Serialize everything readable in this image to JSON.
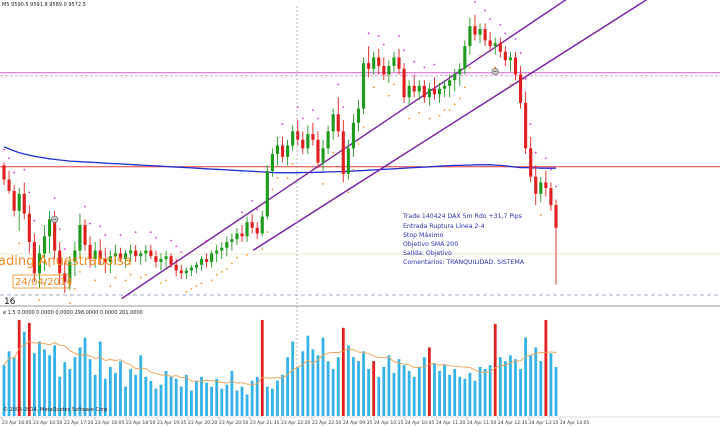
{
  "header": {
    "symbol_text": "M5  9590.5 9591.8 9589.0 9572.5",
    "indicator_text": "e 1.5 0.0000 0.0000 0.0000 298.0000 0.0000 201.0000",
    "copyright_text": "© 2005-2014, MetaQuotes Software Corp.",
    "subwindow_label": "16"
  },
  "watermark": {
    "line1": "ading Anuestrabolsa",
    "line2": "24/04/2014"
  },
  "annotation": {
    "lines": [
      "Trade 140424 DAX 5m Rdo +31,7 Pips",
      "Entrada Ruptura Línea 2-4",
      "Stop Máximo",
      "Objetivo SMA 200",
      "Salida: Objetivo",
      "Comentarios: TRANQUILIDAD. SISTEMA"
    ]
  },
  "colors": {
    "bull_candle": "#1f9a1f",
    "bear_candle": "#e02020",
    "sma_line": "#1e2fd2",
    "trend_line": "#7a1fa0",
    "sar_above": "#d83ad8",
    "sar_below": "#f0962a",
    "red_hline": "#e03838",
    "pink_hline": "#d060d0",
    "volume_bar": "#35b3e6",
    "volume_spike": "#e02020",
    "volume_ma": "#f0a050"
  },
  "chart_data": {
    "type": "candlestick",
    "symbol": "DAX",
    "timeframe": "M5",
    "x_tick_labels": [
      "23 Apr 16:05",
      "23 Apr 16:50",
      "23 Apr 17:20",
      "23 Apr 18:05",
      "23 Apr 18:50",
      "23 Apr 19:35",
      "23 Apr 20:20",
      "23 Apr 20:50",
      "23 Apr 21:35",
      "23 Apr 22:20",
      "23 Apr 22:50",
      "24 Apr 09:35",
      "24 Apr 10:15",
      "24 Apr 10:45",
      "24 Apr 11:20",
      "24 Apr 11:50",
      "24 Apr 12:35",
      "24 Apr 13:15",
      "24 Apr 14:05"
    ],
    "horizontal_levels": [
      {
        "kind": "resistance",
        "value": 0.786
      },
      {
        "kind": "support",
        "value": 0.455
      }
    ],
    "candles": [
      [
        0.46,
        0.47,
        0.39,
        0.41
      ],
      [
        0.41,
        0.44,
        0.36,
        0.37
      ],
      [
        0.37,
        0.39,
        0.28,
        0.3
      ],
      [
        0.3,
        0.38,
        0.23,
        0.36
      ],
      [
        0.36,
        0.4,
        0.27,
        0.29
      ],
      [
        0.29,
        0.32,
        0.15,
        0.19
      ],
      [
        0.19,
        0.22,
        0.05,
        0.08
      ],
      [
        0.08,
        0.18,
        0.03,
        0.15
      ],
      [
        0.15,
        0.25,
        0.09,
        0.21
      ],
      [
        0.21,
        0.3,
        0.15,
        0.27
      ],
      [
        0.27,
        0.3,
        0.13,
        0.16
      ],
      [
        0.16,
        0.19,
        0.04,
        0.08
      ],
      [
        0.08,
        0.12,
        0.01,
        0.05
      ],
      [
        0.05,
        0.14,
        0.02,
        0.12
      ],
      [
        0.12,
        0.19,
        0.07,
        0.16
      ],
      [
        0.16,
        0.29,
        0.13,
        0.25
      ],
      [
        0.25,
        0.27,
        0.16,
        0.18
      ],
      [
        0.18,
        0.21,
        0.1,
        0.13
      ],
      [
        0.13,
        0.19,
        0.1,
        0.16
      ],
      [
        0.16,
        0.2,
        0.11,
        0.13
      ],
      [
        0.13,
        0.17,
        0.08,
        0.12
      ],
      [
        0.12,
        0.16,
        0.08,
        0.14
      ],
      [
        0.14,
        0.18,
        0.11,
        0.15
      ],
      [
        0.15,
        0.17,
        0.12,
        0.13
      ],
      [
        0.13,
        0.16,
        0.1,
        0.15
      ],
      [
        0.15,
        0.18,
        0.12,
        0.16
      ],
      [
        0.16,
        0.18,
        0.12,
        0.14
      ],
      [
        0.14,
        0.16,
        0.11,
        0.15
      ],
      [
        0.15,
        0.18,
        0.12,
        0.16
      ],
      [
        0.16,
        0.18,
        0.13,
        0.14
      ],
      [
        0.14,
        0.16,
        0.1,
        0.12
      ],
      [
        0.12,
        0.15,
        0.09,
        0.13
      ],
      [
        0.13,
        0.16,
        0.1,
        0.14
      ],
      [
        0.14,
        0.15,
        0.1,
        0.11
      ],
      [
        0.11,
        0.13,
        0.07,
        0.09
      ],
      [
        0.09,
        0.11,
        0.06,
        0.08
      ],
      [
        0.08,
        0.1,
        0.06,
        0.09
      ],
      [
        0.09,
        0.11,
        0.07,
        0.1
      ],
      [
        0.1,
        0.12,
        0.08,
        0.11
      ],
      [
        0.11,
        0.14,
        0.09,
        0.13
      ],
      [
        0.13,
        0.15,
        0.1,
        0.12
      ],
      [
        0.12,
        0.16,
        0.1,
        0.15
      ],
      [
        0.15,
        0.18,
        0.12,
        0.16
      ],
      [
        0.16,
        0.19,
        0.13,
        0.17
      ],
      [
        0.17,
        0.21,
        0.14,
        0.19
      ],
      [
        0.19,
        0.22,
        0.16,
        0.2
      ],
      [
        0.2,
        0.24,
        0.18,
        0.22
      ],
      [
        0.22,
        0.25,
        0.19,
        0.21
      ],
      [
        0.21,
        0.28,
        0.19,
        0.26
      ],
      [
        0.26,
        0.29,
        0.22,
        0.24
      ],
      [
        0.24,
        0.26,
        0.2,
        0.22
      ],
      [
        0.22,
        0.3,
        0.21,
        0.28
      ],
      [
        0.28,
        0.46,
        0.27,
        0.44
      ],
      [
        0.44,
        0.52,
        0.42,
        0.5
      ],
      [
        0.5,
        0.56,
        0.46,
        0.53
      ],
      [
        0.53,
        0.56,
        0.47,
        0.49
      ],
      [
        0.49,
        0.55,
        0.46,
        0.53
      ],
      [
        0.53,
        0.6,
        0.51,
        0.58
      ],
      [
        0.58,
        0.62,
        0.53,
        0.55
      ],
      [
        0.55,
        0.58,
        0.5,
        0.52
      ],
      [
        0.52,
        0.6,
        0.5,
        0.57
      ],
      [
        0.57,
        0.61,
        0.53,
        0.55
      ],
      [
        0.55,
        0.58,
        0.45,
        0.47
      ],
      [
        0.47,
        0.55,
        0.44,
        0.52
      ],
      [
        0.52,
        0.6,
        0.5,
        0.58
      ],
      [
        0.58,
        0.66,
        0.55,
        0.64
      ],
      [
        0.64,
        0.7,
        0.56,
        0.58
      ],
      [
        0.58,
        0.62,
        0.4,
        0.43
      ],
      [
        0.43,
        0.55,
        0.41,
        0.52
      ],
      [
        0.52,
        0.64,
        0.49,
        0.61
      ],
      [
        0.61,
        0.69,
        0.58,
        0.66
      ],
      [
        0.66,
        0.84,
        0.64,
        0.82
      ],
      [
        0.82,
        0.88,
        0.77,
        0.8
      ],
      [
        0.8,
        0.86,
        0.78,
        0.84
      ],
      [
        0.84,
        0.87,
        0.78,
        0.81
      ],
      [
        0.81,
        0.84,
        0.76,
        0.78
      ],
      [
        0.78,
        0.83,
        0.75,
        0.81
      ],
      [
        0.81,
        0.86,
        0.79,
        0.84
      ],
      [
        0.84,
        0.87,
        0.78,
        0.8
      ],
      [
        0.8,
        0.82,
        0.68,
        0.7
      ],
      [
        0.7,
        0.76,
        0.67,
        0.74
      ],
      [
        0.74,
        0.78,
        0.7,
        0.72
      ],
      [
        0.72,
        0.76,
        0.69,
        0.74
      ],
      [
        0.74,
        0.76,
        0.68,
        0.7
      ],
      [
        0.7,
        0.75,
        0.67,
        0.73
      ],
      [
        0.73,
        0.77,
        0.69,
        0.71
      ],
      [
        0.71,
        0.75,
        0.68,
        0.73
      ],
      [
        0.73,
        0.76,
        0.7,
        0.74
      ],
      [
        0.74,
        0.78,
        0.7,
        0.76
      ],
      [
        0.76,
        0.8,
        0.72,
        0.78
      ],
      [
        0.78,
        0.82,
        0.74,
        0.8
      ],
      [
        0.8,
        0.9,
        0.78,
        0.88
      ],
      [
        0.88,
        0.98,
        0.85,
        0.95
      ],
      [
        0.95,
        0.99,
        0.9,
        0.92
      ],
      [
        0.92,
        0.96,
        0.89,
        0.94
      ],
      [
        0.94,
        0.96,
        0.88,
        0.9
      ],
      [
        0.9,
        0.93,
        0.86,
        0.88
      ],
      [
        0.88,
        0.91,
        0.85,
        0.89
      ],
      [
        0.89,
        0.91,
        0.84,
        0.86
      ],
      [
        0.86,
        0.88,
        0.81,
        0.83
      ],
      [
        0.83,
        0.86,
        0.79,
        0.84
      ],
      [
        0.84,
        0.86,
        0.76,
        0.78
      ],
      [
        0.78,
        0.81,
        0.66,
        0.68
      ],
      [
        0.68,
        0.72,
        0.5,
        0.52
      ],
      [
        0.52,
        0.56,
        0.4,
        0.42
      ],
      [
        0.42,
        0.46,
        0.32,
        0.36
      ],
      [
        0.36,
        0.42,
        0.33,
        0.4
      ],
      [
        0.4,
        0.44,
        0.35,
        0.38
      ],
      [
        0.38,
        0.4,
        0.3,
        0.32
      ],
      [
        0.32,
        0.34,
        0.04,
        0.24
      ]
    ],
    "sma200": [
      0.525,
      0.518,
      0.511,
      0.505,
      0.5,
      0.496,
      0.492,
      0.489,
      0.486,
      0.483,
      0.481,
      0.479,
      0.477,
      0.475,
      0.474,
      0.473,
      0.472,
      0.471,
      0.47,
      0.469,
      0.468,
      0.467,
      0.466,
      0.465,
      0.464,
      0.463,
      0.462,
      0.461,
      0.46,
      0.459,
      0.458,
      0.457,
      0.456,
      0.455,
      0.454,
      0.453,
      0.452,
      0.451,
      0.45,
      0.449,
      0.448,
      0.447,
      0.446,
      0.445,
      0.444,
      0.443,
      0.442,
      0.441,
      0.44,
      0.439,
      0.438,
      0.437,
      0.436,
      0.435,
      0.434,
      0.434,
      0.434,
      0.434,
      0.434,
      0.435,
      0.435,
      0.435,
      0.436,
      0.436,
      0.437,
      0.437,
      0.438,
      0.438,
      0.439,
      0.44,
      0.441,
      0.442,
      0.443,
      0.444,
      0.445,
      0.446,
      0.447,
      0.448,
      0.449,
      0.45,
      0.451,
      0.452,
      0.453,
      0.454,
      0.455,
      0.456,
      0.457,
      0.458,
      0.459,
      0.46,
      0.46,
      0.461,
      0.461,
      0.462,
      0.462,
      0.462,
      0.462,
      0.461,
      0.46,
      0.458,
      0.456,
      0.454,
      0.452,
      0.452,
      0.451,
      0.451,
      0.45,
      0.45,
      0.45,
      0.45
    ],
    "trend_lines": [
      {
        "name": "2-4",
        "from": [
          24,
          0.0
        ],
        "to": [
          109,
          1.02
        ]
      },
      {
        "name": "secondary",
        "from": [
          50,
          0.17
        ],
        "to": [
          109,
          0.84
        ]
      }
    ],
    "entry_markers": [
      {
        "index": 10,
        "value": 0.27
      },
      {
        "index": 97,
        "value": 0.79
      }
    ],
    "volume": [
      52,
      66,
      60,
      98,
      86,
      95,
      64,
      76,
      68,
      62,
      72,
      40,
      55,
      48,
      60,
      70,
      80,
      58,
      42,
      76,
      38,
      50,
      44,
      56,
      30,
      48,
      42,
      62,
      40,
      36,
      28,
      32,
      46,
      40,
      38,
      30,
      42,
      26,
      36,
      40,
      34,
      30,
      38,
      28,
      32,
      46,
      26,
      30,
      22,
      36,
      40,
      98,
      30,
      28,
      36,
      42,
      60,
      76,
      50,
      66,
      82,
      68,
      62,
      80,
      56,
      48,
      60,
      90,
      72,
      60,
      56,
      66,
      48,
      56,
      40,
      50,
      62,
      44,
      58,
      52,
      46,
      40,
      50,
      60,
      70,
      54,
      46,
      52,
      42,
      48,
      40,
      38,
      44,
      36,
      50,
      48,
      52,
      94,
      60,
      56,
      62,
      58,
      48,
      80,
      62,
      70,
      56,
      98,
      64,
      50
    ],
    "volume_spike_indices": [
      3,
      5,
      51,
      67,
      73,
      84,
      97,
      107
    ]
  }
}
